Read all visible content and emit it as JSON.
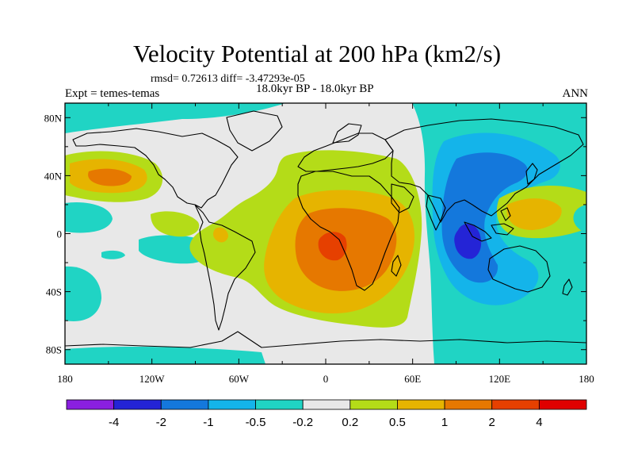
{
  "title": "Velocity Potential at 200 hPa (km2/s)",
  "stats": "rmsd= 0.72613 diff= -3.47293e-05",
  "left_label": "Expt = temes-temas",
  "center_label": "18.0kyr BP - 18.0kyr BP",
  "right_label": "ANN",
  "axes": {
    "lon_ticks": [
      "180",
      "120W",
      "60W",
      "0",
      "60E",
      "120E",
      "180"
    ],
    "lat_ticks": [
      "80N",
      "40N",
      "0",
      "40S",
      "80S"
    ]
  },
  "colorbar": {
    "labels": [
      "-4",
      "-2",
      "-1",
      "-0.5",
      "-0.2",
      "0.2",
      "0.5",
      "1",
      "2",
      "4"
    ],
    "colors": [
      "#8a1fe0",
      "#2424d6",
      "#1478dc",
      "#14b4ea",
      "#20d4c4",
      "#e8e8e8",
      "#b4dc18",
      "#e6b400",
      "#e67800",
      "#e64000",
      "#e00000"
    ]
  },
  "palette": {
    "neg_strong": "#2424d6",
    "neg_mid": "#1478dc",
    "neg_weak": "#14b4ea",
    "neg_small": "#20d4c4",
    "neutral": "#e8e8e8",
    "pos_small": "#b4dc18",
    "pos_weak": "#e6b400",
    "pos_mid": "#e67800",
    "pos_strong": "#e64000"
  }
}
